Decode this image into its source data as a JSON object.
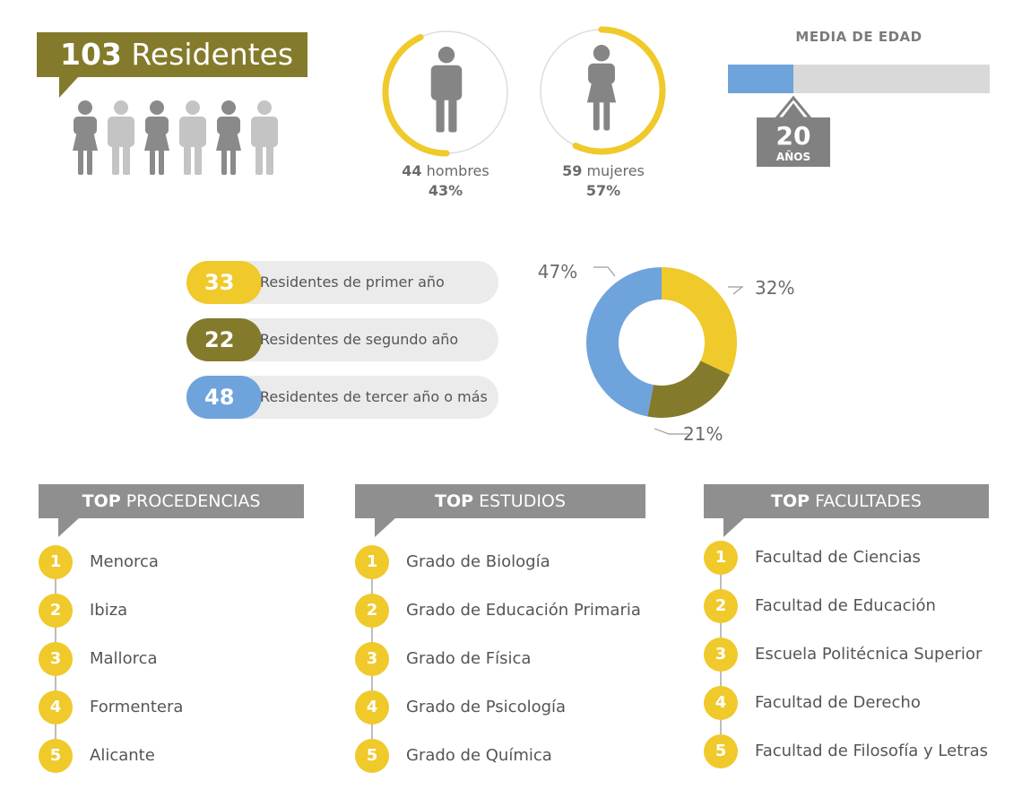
{
  "colors": {
    "olive": "#847a2b",
    "yellow": "#f0c92a",
    "blue": "#6fa3dc",
    "gray": "#8f8f8f",
    "light_gray": "#ebebeb"
  },
  "header": {
    "count": "103",
    "label": "Residentes"
  },
  "people_icons": [
    "female",
    "male",
    "female",
    "male",
    "female",
    "male"
  ],
  "gender": {
    "male": {
      "count": "44",
      "label": "hombres",
      "percent": "43%",
      "share": 0.43
    },
    "female": {
      "count": "59",
      "label": "mujeres",
      "percent": "57%",
      "share": 0.57
    }
  },
  "age": {
    "title": "MEDIA DE EDAD",
    "value": "20",
    "unit": "AÑOS",
    "bar_fill": 0.25
  },
  "years": [
    {
      "count": "33",
      "label": "Residentes de primer año",
      "color": "#f0c92a"
    },
    {
      "count": "22",
      "label": "Residentes de segundo año",
      "color": "#847a2b"
    },
    {
      "count": "48",
      "label": "Residentes de tercer año o más",
      "color": "#6fa3dc"
    }
  ],
  "chart_data": {
    "type": "pie",
    "categories": [
      "Residentes de primer año",
      "Residentes de segundo año",
      "Residentes de tercer año o más"
    ],
    "values": [
      32,
      21,
      47
    ],
    "labels": [
      "32%",
      "21%",
      "47%"
    ],
    "colors": [
      "#f0c92a",
      "#847a2b",
      "#6fa3dc"
    ],
    "donut": true
  },
  "top_lists": [
    {
      "head_bold": "TOP",
      "head_rest": "PROCEDENCIAS",
      "items": [
        "Menorca",
        "Ibiza",
        "Mallorca",
        "Formentera",
        "Alicante"
      ]
    },
    {
      "head_bold": "TOP",
      "head_rest": "ESTUDIOS",
      "items": [
        "Grado de Biología",
        "Grado de Educación Primaria",
        "Grado de Física",
        "Grado de Psicología",
        "Grado de Química"
      ]
    },
    {
      "head_bold": "TOP",
      "head_rest": "FACULTADES",
      "items": [
        "Facultad de Ciencias",
        "Facultad de Educación",
        "Escuela Politécnica Superior",
        "Facultad de Derecho",
        "Facultad de Filosofía y Letras"
      ]
    }
  ]
}
